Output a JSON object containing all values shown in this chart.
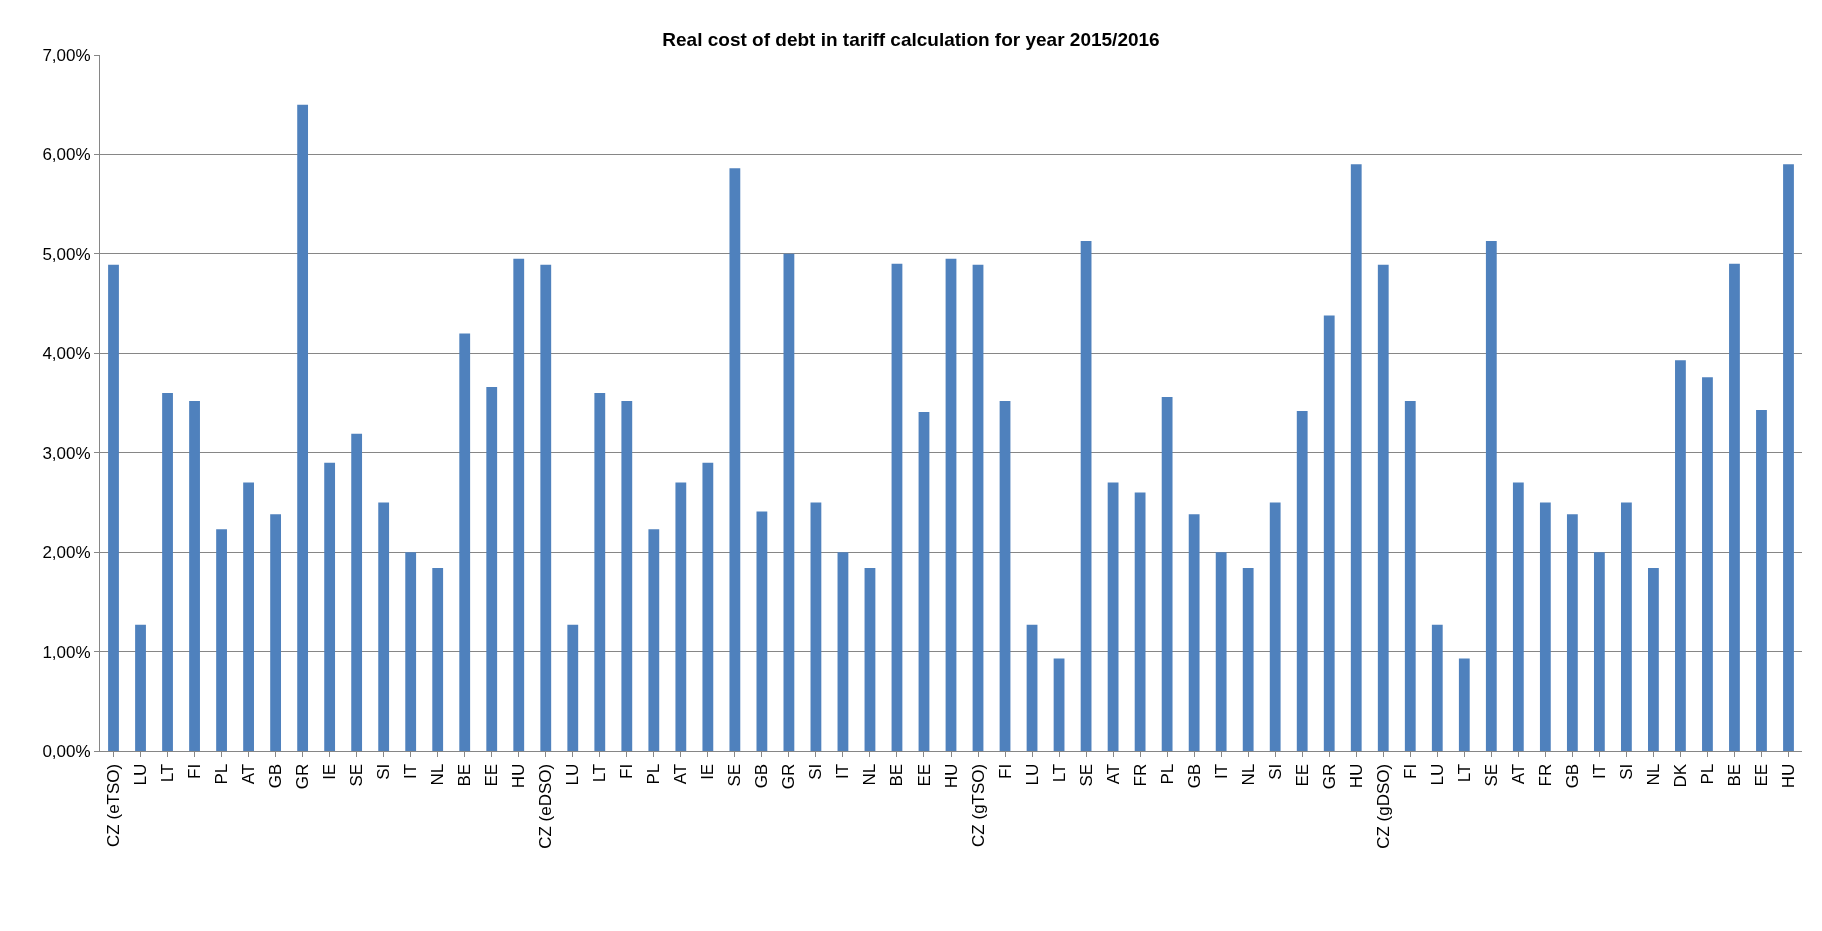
{
  "chart_data": {
    "type": "bar",
    "title": "Real cost of debt in tariff calculation for year 2015/2016",
    "categories": [
      "CZ (eTSO)",
      "LU",
      "LT",
      "FI",
      "PL",
      "AT",
      "GB",
      "GR",
      "IE",
      "SE",
      "SI",
      "IT",
      "NL",
      "BE",
      "EE",
      "HU",
      "CZ (eDSO)",
      "LU",
      "LT",
      "FI",
      "PL",
      "AT",
      "IE",
      "SE",
      "GB",
      "GR",
      "SI",
      "IT",
      "NL",
      "BE",
      "EE",
      "HU",
      "CZ (gTSO)",
      "FI",
      "LU",
      "LT",
      "SE",
      "AT",
      "FR",
      "PL",
      "GB",
      "IT",
      "NL",
      "SI",
      "EE",
      "GR",
      "HU",
      "CZ (gDSO)",
      "FI",
      "LU",
      "LT",
      "SE",
      "AT",
      "FR",
      "GB",
      "IT",
      "SI",
      "NL",
      "DK",
      "PL",
      "BE",
      "EE",
      "HU"
    ],
    "values": [
      4.89,
      1.27,
      3.6,
      3.52,
      2.23,
      2.7,
      2.38,
      6.5,
      2.9,
      3.19,
      2.5,
      2.0,
      1.84,
      4.2,
      3.66,
      4.95,
      4.89,
      1.27,
      3.6,
      3.52,
      2.23,
      2.7,
      2.9,
      5.86,
      2.41,
      5.0,
      2.5,
      2.0,
      1.84,
      4.9,
      3.41,
      4.95,
      4.89,
      3.52,
      1.27,
      0.93,
      5.13,
      2.7,
      2.6,
      3.56,
      2.38,
      2.0,
      1.84,
      2.5,
      3.42,
      4.38,
      5.9,
      4.89,
      3.52,
      1.27,
      0.93,
      5.13,
      2.7,
      2.5,
      2.38,
      2.0,
      2.5,
      1.84,
      3.93,
      3.76,
      4.9,
      3.43,
      5.9
    ],
    "color": "#4f81bd",
    "ylim": [
      0,
      7
    ],
    "yticks": [
      {
        "value": 0,
        "label": "0,00%"
      },
      {
        "value": 1,
        "label": "1,00%"
      },
      {
        "value": 2,
        "label": "2,00%"
      },
      {
        "value": 3,
        "label": "3,00%"
      },
      {
        "value": 4,
        "label": "4,00%"
      },
      {
        "value": 5,
        "label": "5,00%"
      },
      {
        "value": 6,
        "label": "6,00%"
      },
      {
        "value": 7,
        "label": "7,00%"
      }
    ],
    "grid": "y"
  }
}
